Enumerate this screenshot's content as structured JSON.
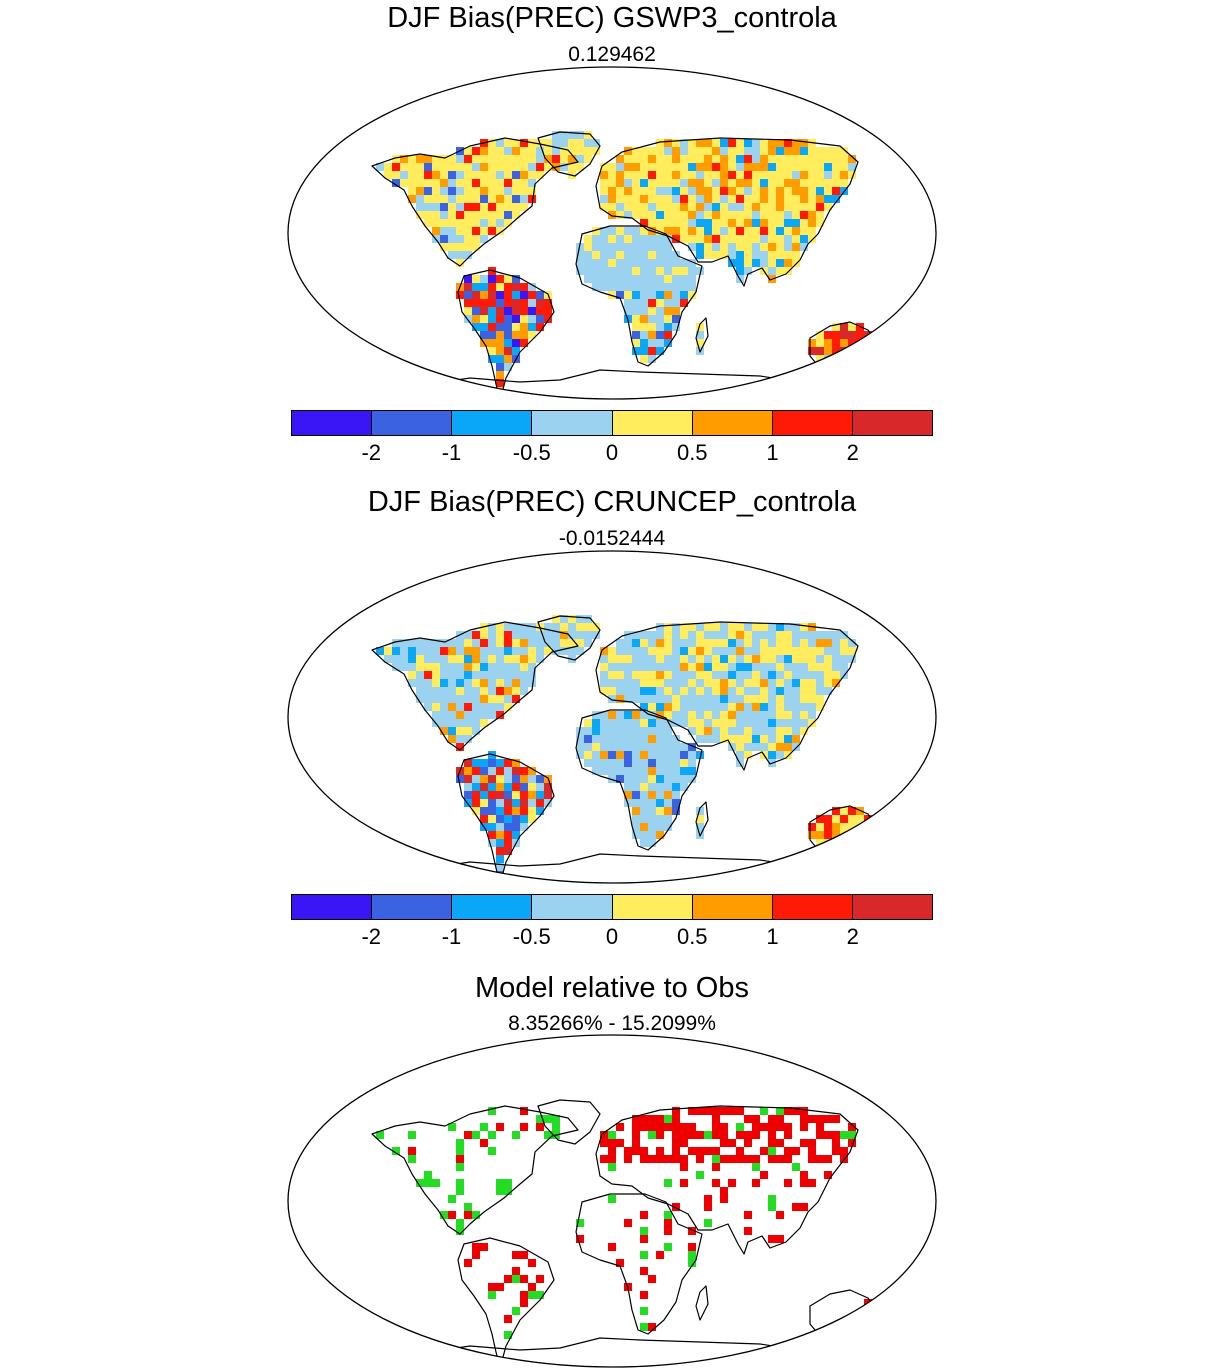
{
  "panels": [
    {
      "title": "DJF Bias(PREC) GSWP3_controla",
      "subtitle": "0.129462",
      "ocean_color": "#ffffff",
      "coast_color": "#000000"
    },
    {
      "title": "DJF Bias(PREC) CRUNCEP_controla",
      "subtitle": "-0.0152444",
      "ocean_color": "#ffffff",
      "coast_color": "#000000"
    },
    {
      "title": "Model relative to Obs",
      "subtitle": "8.35266% - 15.2099%",
      "ocean_color": "#ffffff",
      "coast_color": "#000000"
    }
  ],
  "colorbar": {
    "colors": [
      "#3a15f5",
      "#3b62e0",
      "#0aa6f7",
      "#9bd2ef",
      "#ffed5e",
      "#ff9c00",
      "#ff1a08",
      "#d8282a"
    ],
    "tick_labels": [
      "-2",
      "-1",
      "-0.5",
      "0",
      "0.5",
      "1",
      "2"
    ]
  },
  "relative_colors": {
    "red": "#ee0000",
    "green": "#22dd22"
  }
}
